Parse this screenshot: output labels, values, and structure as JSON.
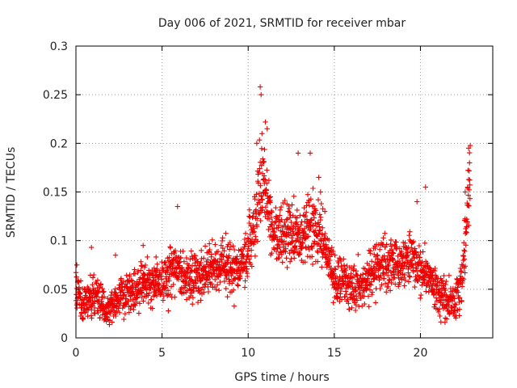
{
  "chart_data": {
    "type": "scatter",
    "title": "Day 006 of 2021, SRMTID for receiver mbar",
    "xlabel": "GPS time / hours",
    "ylabel": "SRMTID / TECUs",
    "xlim": [
      0,
      24.2
    ],
    "ylim": [
      0,
      0.3
    ],
    "x_ticks": [
      0,
      5,
      10,
      15,
      20
    ],
    "y_ticks": [
      0,
      0.05,
      0.1,
      0.15,
      0.2,
      0.25,
      0.3
    ],
    "x_tick_labels": [
      "0",
      "5",
      "10",
      "15",
      "20"
    ],
    "y_tick_labels": [
      "0",
      "0.05",
      "0.1",
      "0.15",
      "0.2",
      "0.25",
      "0.3"
    ],
    "grid": true,
    "marker": "plus",
    "color": "#ee0000",
    "series": [
      {
        "name": "SRMTID",
        "trend": [
          [
            0.0,
            0.055
          ],
          [
            0.3,
            0.035
          ],
          [
            0.8,
            0.04
          ],
          [
            1.2,
            0.045
          ],
          [
            1.7,
            0.03
          ],
          [
            2.2,
            0.035
          ],
          [
            2.8,
            0.045
          ],
          [
            3.5,
            0.05
          ],
          [
            4.0,
            0.055
          ],
          [
            4.6,
            0.055
          ],
          [
            5.2,
            0.06
          ],
          [
            5.8,
            0.07
          ],
          [
            6.5,
            0.06
          ],
          [
            7.5,
            0.065
          ],
          [
            8.5,
            0.075
          ],
          [
            9.5,
            0.07
          ],
          [
            10.0,
            0.09
          ],
          [
            10.5,
            0.12
          ],
          [
            10.8,
            0.17
          ],
          [
            11.3,
            0.12
          ],
          [
            11.8,
            0.1
          ],
          [
            12.3,
            0.11
          ],
          [
            13.0,
            0.1
          ],
          [
            13.5,
            0.12
          ],
          [
            14.0,
            0.11
          ],
          [
            14.5,
            0.09
          ],
          [
            15.0,
            0.06
          ],
          [
            15.5,
            0.06
          ],
          [
            16.0,
            0.055
          ],
          [
            16.5,
            0.05
          ],
          [
            17.0,
            0.065
          ],
          [
            17.5,
            0.07
          ],
          [
            18.0,
            0.075
          ],
          [
            18.5,
            0.08
          ],
          [
            19.0,
            0.075
          ],
          [
            19.5,
            0.08
          ],
          [
            20.0,
            0.07
          ],
          [
            20.5,
            0.065
          ],
          [
            21.0,
            0.045
          ],
          [
            21.5,
            0.04
          ],
          [
            22.0,
            0.035
          ],
          [
            22.4,
            0.06
          ],
          [
            22.7,
            0.12
          ],
          [
            22.9,
            0.17
          ]
        ],
        "notable_points": [
          [
            0.05,
            0.075
          ],
          [
            0.9,
            0.093
          ],
          [
            2.3,
            0.085
          ],
          [
            3.9,
            0.095
          ],
          [
            5.9,
            0.135
          ],
          [
            10.5,
            0.2
          ],
          [
            10.7,
            0.258
          ],
          [
            10.75,
            0.25
          ],
          [
            10.8,
            0.21
          ],
          [
            11.0,
            0.222
          ],
          [
            11.1,
            0.215
          ],
          [
            12.9,
            0.19
          ],
          [
            13.6,
            0.19
          ],
          [
            14.1,
            0.165
          ],
          [
            14.2,
            0.15
          ],
          [
            20.3,
            0.155
          ],
          [
            19.8,
            0.14
          ],
          [
            22.8,
            0.195
          ],
          [
            22.85,
            0.18
          ],
          [
            22.6,
            0.15
          ]
        ]
      }
    ]
  }
}
